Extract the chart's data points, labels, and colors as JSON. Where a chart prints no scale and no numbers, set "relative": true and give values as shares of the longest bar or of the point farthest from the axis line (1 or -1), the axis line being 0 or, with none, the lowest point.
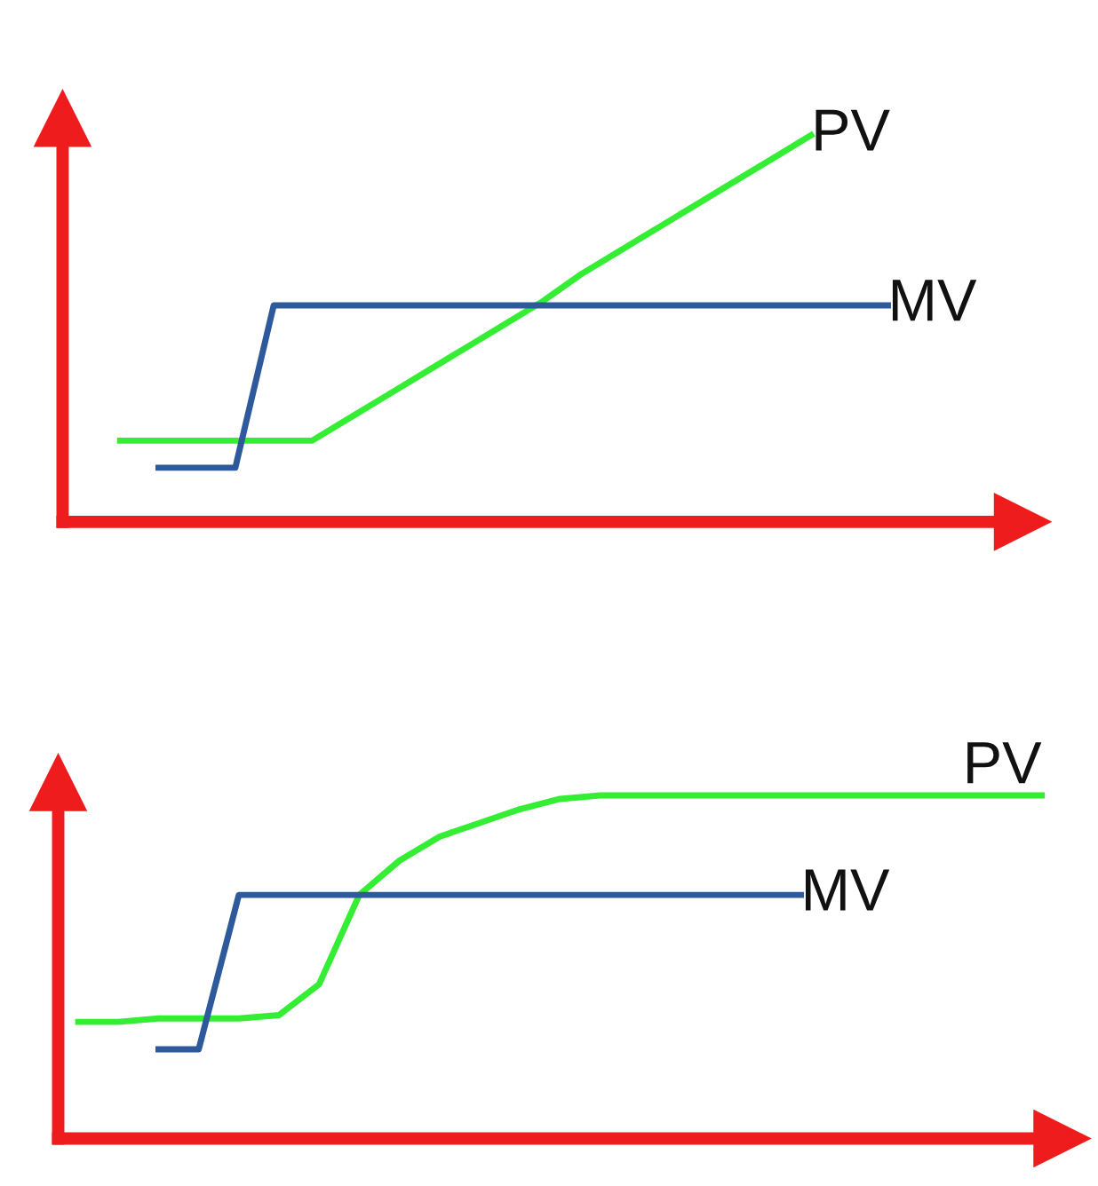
{
  "chart_data": [
    {
      "type": "line",
      "relative": true,
      "categories": [
        null,
        null,
        null,
        null,
        null,
        null,
        null,
        null,
        null,
        null,
        null,
        null,
        null,
        null,
        null,
        null,
        null,
        null,
        null,
        null,
        null,
        null,
        null,
        null,
        null
      ],
      "series": [
        {
          "name": "PV",
          "color": "#33ee33",
          "values": [
            null,
            0.21,
            0.21,
            0.21,
            0.21,
            0.21,
            0.21,
            0.27,
            0.33,
            0.39,
            0.45,
            0.51,
            0.57,
            0.64,
            0.7,
            0.76,
            0.82,
            0.88,
            0.94,
            1.0,
            null,
            null,
            null,
            null,
            null
          ]
        },
        {
          "name": "MV",
          "color": "#2e5a9c",
          "values": [
            null,
            null,
            0.14,
            0.14,
            0.14,
            0.56,
            0.56,
            0.56,
            0.56,
            0.56,
            0.56,
            0.56,
            0.56,
            0.56,
            0.56,
            0.56,
            0.56,
            0.56,
            0.56,
            0.56,
            0.56,
            0.56,
            null,
            null,
            null
          ]
        }
      ]
    },
    {
      "type": "line",
      "relative": true,
      "categories": [
        null,
        null,
        null,
        null,
        null,
        null,
        null,
        null,
        null,
        null,
        null,
        null,
        null,
        null,
        null,
        null,
        null,
        null,
        null,
        null,
        null,
        null,
        null,
        null,
        null
      ],
      "series": [
        {
          "name": "PV",
          "color": "#33ee33",
          "values": [
            0.34,
            0.34,
            0.35,
            0.35,
            0.35,
            0.36,
            0.45,
            0.71,
            0.81,
            0.88,
            0.92,
            0.96,
            0.99,
            1.0,
            1.0,
            1.0,
            1.0,
            1.0,
            1.0,
            1.0,
            1.0,
            1.0,
            1.0,
            1.0,
            1.0
          ]
        },
        {
          "name": "MV",
          "color": "#2e5a9c",
          "values": [
            null,
            null,
            0.26,
            0.26,
            0.71,
            0.71,
            0.71,
            0.71,
            0.71,
            0.71,
            0.71,
            0.71,
            0.71,
            0.71,
            0.71,
            0.71,
            0.71,
            0.71,
            0.71,
            null,
            null,
            null,
            null,
            null,
            null
          ]
        }
      ]
    }
  ]
}
